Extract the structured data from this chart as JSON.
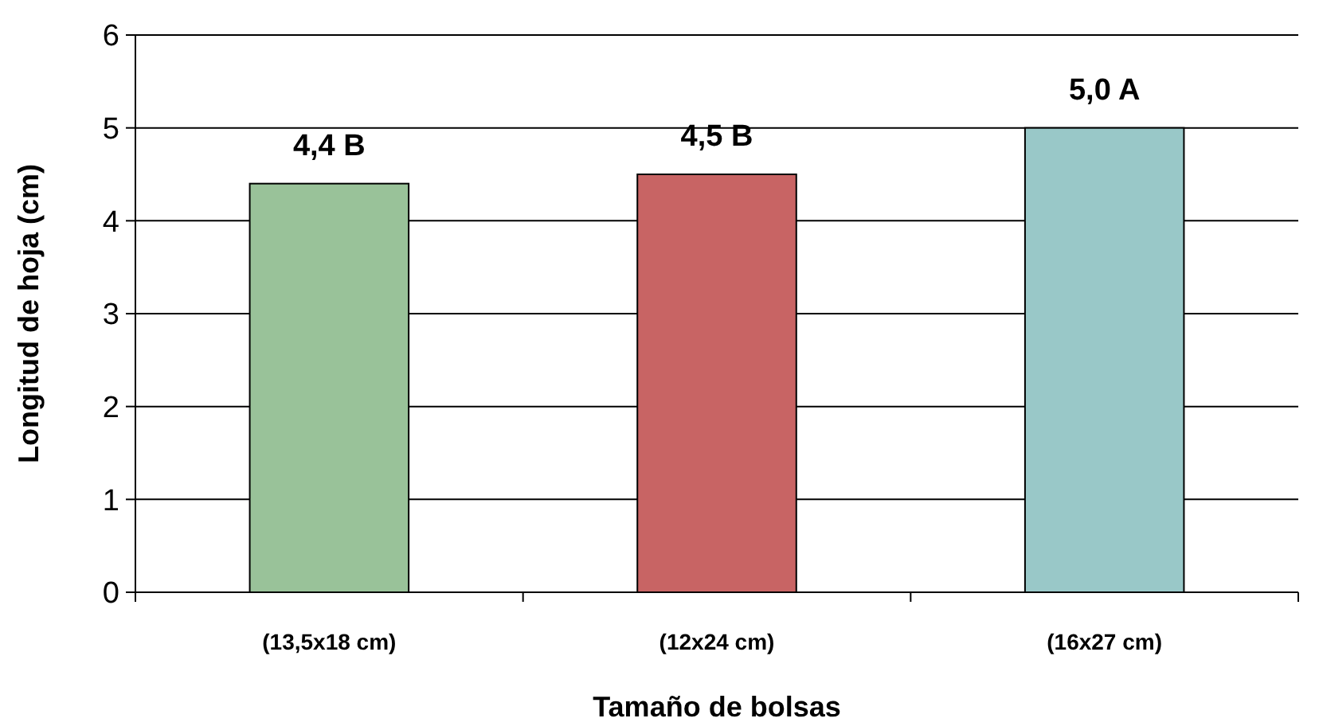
{
  "chart_data": {
    "type": "bar",
    "xlabel": "Tamaño de bolsas",
    "ylabel": "Longitud de hoja (cm)",
    "categories": [
      "(13,5x18 cm)",
      "(12x24 cm)",
      "(16x27 cm)"
    ],
    "values": [
      4.4,
      4.5,
      5.0
    ],
    "colors": [
      "#99c299",
      "#c86464",
      "#99c8c8"
    ],
    "value_labels": [
      "4,4 B",
      "4,5 B",
      "5,0 A"
    ],
    "ylim": [
      0,
      6
    ],
    "yticks": [
      0,
      1,
      2,
      3,
      4,
      5,
      6
    ],
    "grid": "y"
  }
}
